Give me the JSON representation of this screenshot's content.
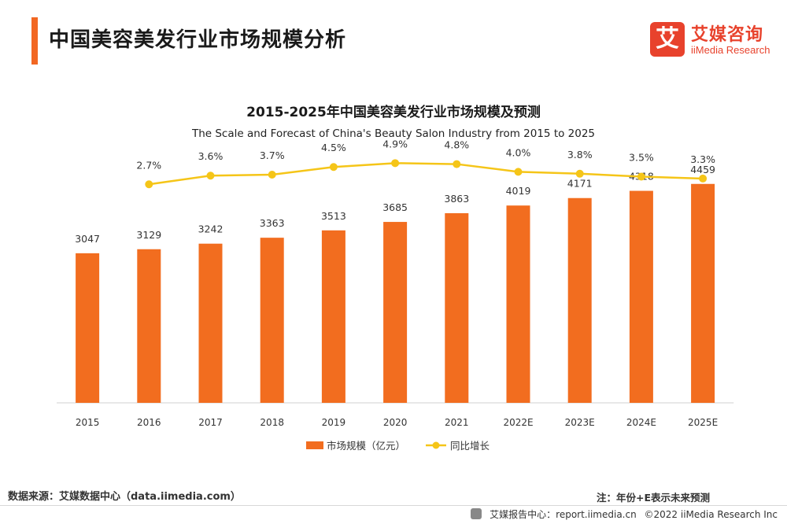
{
  "header": {
    "title": "中国美容美发行业市场规模分析",
    "accent_color": "#f26722"
  },
  "logo": {
    "mark": "艾",
    "name_cn": "艾媒咨询",
    "name_en": "iiMedia Research",
    "color": "#e8422c"
  },
  "chart_data": {
    "type": "bar",
    "title": "2015-2025年中国美容美发行业市场规模及预测",
    "subtitle": "The Scale and Forecast of China's Beauty Salon Industry from 2015 to 2025",
    "categories": [
      "2015",
      "2016",
      "2017",
      "2018",
      "2019",
      "2020",
      "2021",
      "2022E",
      "2023E",
      "2024E",
      "2025E"
    ],
    "series": [
      {
        "name": "市场规模（亿元）",
        "type": "bar",
        "color": "#f26d1f",
        "values": [
          3047,
          3129,
          3242,
          3363,
          3513,
          3685,
          3863,
          4019,
          4171,
          4318,
          4459
        ]
      },
      {
        "name": "同比增长",
        "type": "line",
        "color": "#f5c518",
        "values": [
          null,
          2.7,
          3.6,
          3.7,
          4.5,
          4.9,
          4.8,
          4.0,
          3.8,
          3.5,
          3.3
        ],
        "labels": [
          "",
          "2.7%",
          "3.6%",
          "3.7%",
          "4.5%",
          "4.9%",
          "4.8%",
          "4.0%",
          "3.8%",
          "3.5%",
          "3.3%"
        ]
      }
    ],
    "ylim": [
      0,
      5000
    ],
    "line_ylim": [
      -20,
      5.5
    ],
    "grid": false,
    "legend_position": "bottom"
  },
  "footer": {
    "source": "数据来源：艾媒数据中心（data.iimedia.com）",
    "note": "注：年份+E表示未来预测",
    "report_center": "艾媒报告中心：report.iimedia.cn",
    "copyright": "©2022  iiMedia Research  Inc"
  }
}
